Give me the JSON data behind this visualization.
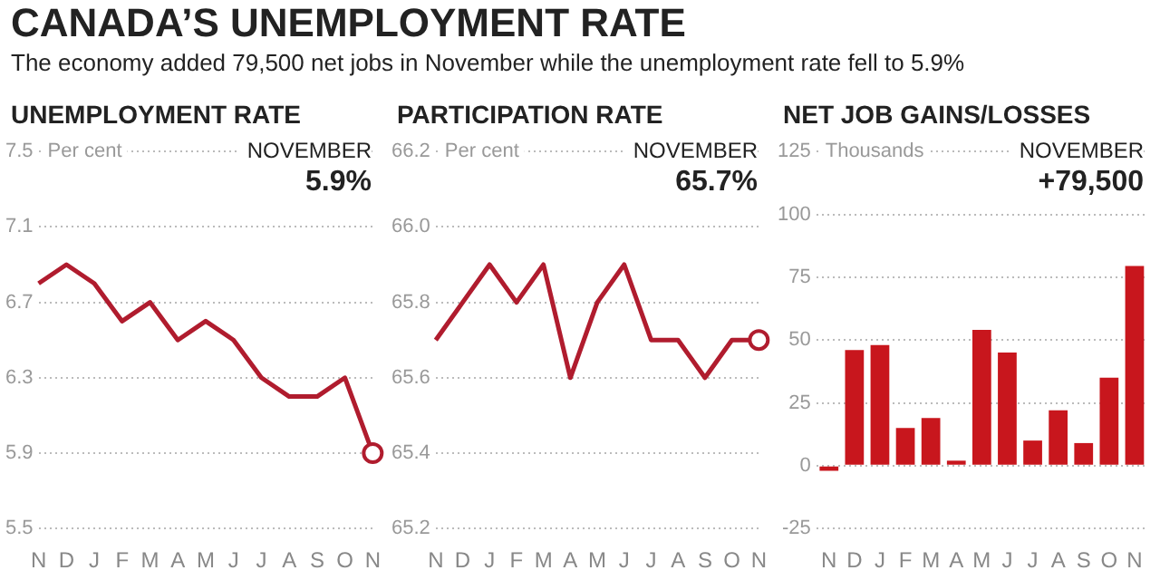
{
  "chart_data": [
    {
      "type": "other",
      "title": "CANADA’S UNEMPLOYMENT RATE",
      "subtitle": "The economy added 79,500 net jobs in November while the unemployment rate fell to 5.9%"
    },
    {
      "type": "line",
      "title": "UNEMPLOYMENT RATE",
      "ylabel": "Per cent",
      "annotations": [
        "NOVEMBER",
        "5.9%"
      ],
      "categories": [
        "N",
        "D",
        "J",
        "F",
        "M",
        "A",
        "M",
        "J",
        "J",
        "A",
        "S",
        "O",
        "N"
      ],
      "values": [
        6.8,
        6.9,
        6.8,
        6.6,
        6.7,
        6.5,
        6.6,
        6.5,
        6.3,
        6.2,
        6.2,
        6.3,
        5.9
      ],
      "color": "#b01c2e",
      "ylim": [
        5.5,
        7.5
      ],
      "yticks": [
        5.5,
        5.9,
        6.3,
        6.7,
        7.1,
        7.5
      ],
      "grid": "y"
    },
    {
      "type": "line",
      "title": "PARTICIPATION RATE",
      "ylabel": "Per cent",
      "annotations": [
        "NOVEMBER",
        "65.7%"
      ],
      "categories": [
        "N",
        "D",
        "J",
        "F",
        "M",
        "A",
        "M",
        "J",
        "J",
        "A",
        "S",
        "O",
        "N"
      ],
      "values": [
        65.7,
        65.8,
        65.9,
        65.8,
        65.9,
        65.6,
        65.8,
        65.9,
        65.7,
        65.7,
        65.6,
        65.7,
        65.7
      ],
      "color": "#b01c2e",
      "ylim": [
        65.2,
        66.2
      ],
      "yticks": [
        {
          "value": 65.2,
          "label": "65.2"
        },
        {
          "value": 65.4,
          "label": "65.4"
        },
        {
          "value": 65.6,
          "label": "65.6"
        },
        {
          "value": 65.8,
          "label": "65.8"
        },
        {
          "value": 66.0,
          "label": "66.0"
        },
        {
          "value": 66.2,
          "label": "66.2"
        }
      ],
      "grid": "y"
    },
    {
      "type": "bar",
      "title": "NET JOB GAINS/LOSSES",
      "ylabel": "Thousands",
      "annotations": [
        "NOVEMBER",
        "+79,500"
      ],
      "categories": [
        "N",
        "D",
        "J",
        "F",
        "M",
        "A",
        "M",
        "J",
        "J",
        "A",
        "S",
        "O",
        "N"
      ],
      "values": [
        -2,
        46,
        48,
        15,
        19,
        2,
        54,
        45,
        10,
        22,
        9,
        35,
        79.5
      ],
      "color": "#c8161d",
      "ylim": [
        -25,
        125
      ],
      "yticks": [
        -25,
        0,
        25,
        50,
        75,
        100,
        125
      ],
      "grid": "y"
    }
  ]
}
